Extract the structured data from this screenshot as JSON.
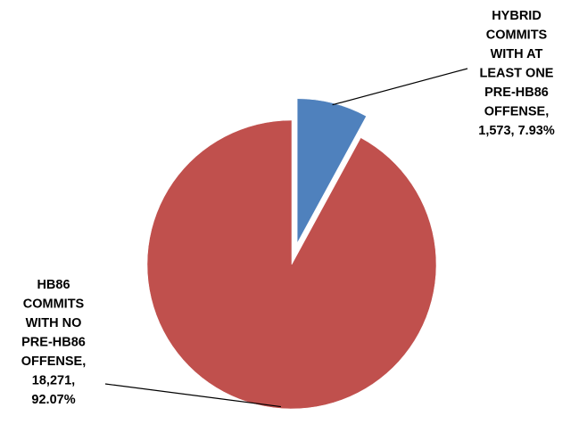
{
  "chart_data": {
    "type": "pie",
    "title": "",
    "slices": [
      {
        "label": "HYBRID COMMITS WITH AT LEAST ONE PRE-HB86 OFFENSE",
        "value": 1573,
        "value_label": "1,573",
        "percent": 7.93,
        "percent_label": "7.93%",
        "color": "#4f81bd",
        "exploded": true,
        "label_lines": [
          "HYBRID",
          "COMMITS",
          "WITH AT",
          "LEAST ONE",
          "PRE-HB86",
          "OFFENSE,",
          "1,573, 7.93%"
        ]
      },
      {
        "label": "HB86 COMMITS WITH NO PRE-HB86 OFFENSE",
        "value": 18271,
        "value_label": "18,271",
        "percent": 92.07,
        "percent_label": "92.07%",
        "color": "#c0504d",
        "exploded": false,
        "label_lines": [
          "HB86",
          "COMMITS",
          "WITH NO",
          "PRE-HB86",
          "OFFENSE,",
          "18,271,",
          "92.07%"
        ]
      }
    ],
    "start_angle_deg": 0,
    "direction": "clockwise",
    "legend": "none",
    "data_labels": "outside-with-leader-lines"
  }
}
